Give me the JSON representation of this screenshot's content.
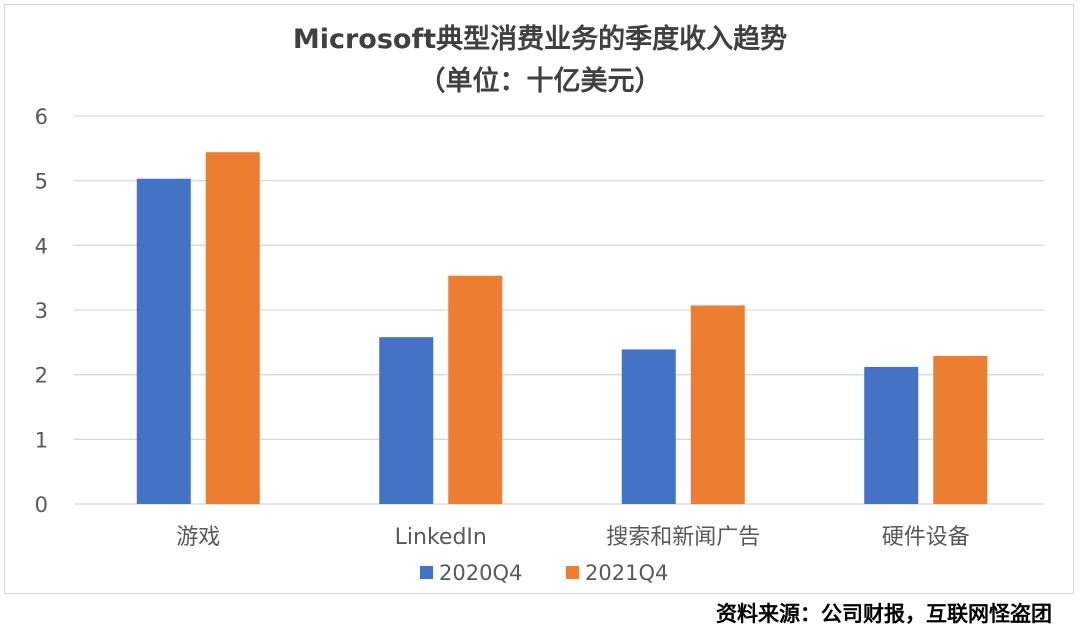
{
  "chart_data": {
    "type": "bar",
    "title": "Microsoft典型消费业务的季度收入趋势",
    "subtitle": "（单位：十亿美元）",
    "categories": [
      "游戏",
      "LinkedIn",
      "搜索和新闻广告",
      "硬件设备"
    ],
    "series": [
      {
        "name": "2020Q4",
        "values": [
          5.03,
          2.58,
          2.39,
          2.12
        ],
        "color": "#4472C4"
      },
      {
        "name": "2021Q4",
        "values": [
          5.44,
          3.53,
          3.07,
          2.29
        ],
        "color": "#ED7D31"
      }
    ],
    "ylim": [
      0,
      6
    ],
    "yticks": [
      "0",
      "1",
      "2",
      "3",
      "4",
      "5",
      "6"
    ],
    "grid": true,
    "legend": "bottom"
  },
  "source": "资料来源：公司财报，互联网怪盗团"
}
